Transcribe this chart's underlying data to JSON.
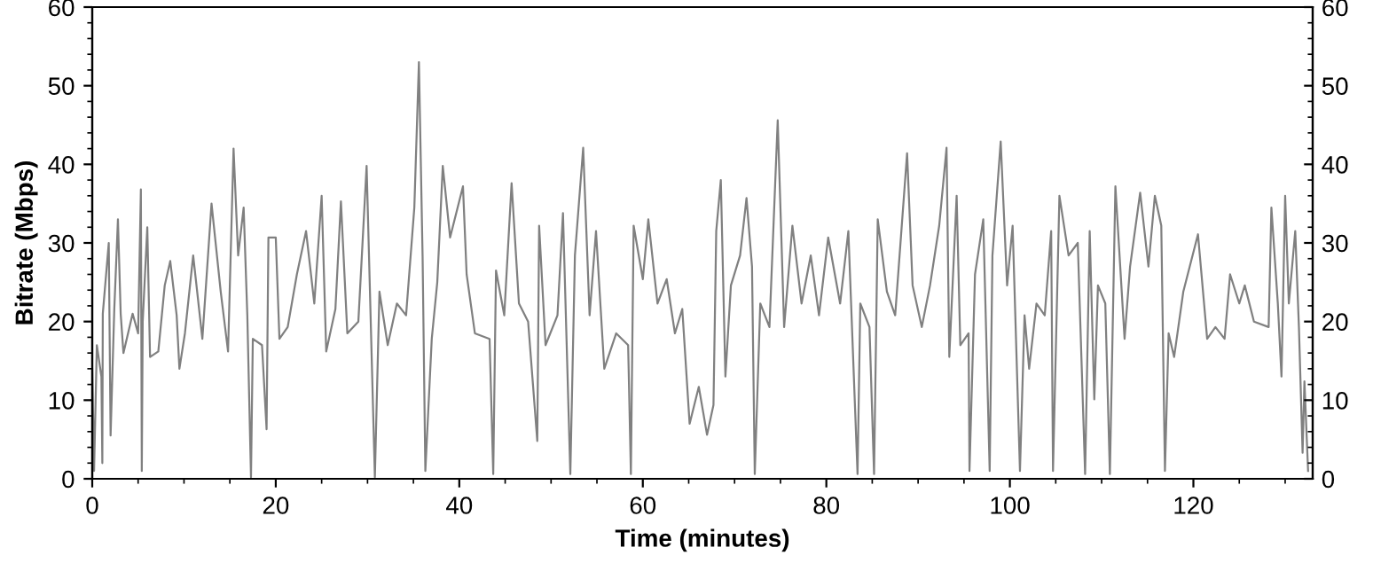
{
  "chart_data": {
    "type": "line",
    "xlabel": "Time (minutes)",
    "ylabel": "Bitrate (Mbps)",
    "xlim": [
      0,
      133
    ],
    "xticks": [
      0,
      20,
      40,
      60,
      80,
      100,
      120
    ],
    "ylim": [
      0,
      60
    ],
    "yticks": [
      0,
      10,
      20,
      30,
      40,
      50,
      60
    ],
    "y2lim": [
      0,
      60
    ],
    "y2ticks": [
      0,
      10,
      20,
      30,
      40,
      50,
      60
    ],
    "grid": false,
    "marker": "none",
    "line_style": "solid",
    "series": [
      {
        "color": "#808080",
        "x": [
          0,
          0.2,
          0.5,
          1.0,
          1.1,
          1.15,
          1.8,
          2.0,
          2.4,
          2.8,
          3.1,
          3.4,
          4.4,
          5.0,
          5.3,
          5.4,
          5.5,
          6.0,
          6.3,
          7.2,
          7.9,
          8.5,
          9.2,
          9.5,
          10.1,
          11.0,
          12.0,
          13.0,
          14.0,
          14.8,
          15.4,
          15.9,
          16.5,
          16.9,
          17.3,
          17.5,
          18.5,
          19.0,
          19.2,
          20.0,
          20.4,
          21.3,
          22.3,
          23.3,
          24.2,
          25.0,
          25.5,
          26.5,
          27.1,
          27.8,
          29.0,
          29.9,
          30.8,
          31.3,
          32.2,
          33.2,
          34.2,
          35.1,
          35.6,
          36.0,
          36.3,
          37.0,
          37.6,
          38.2,
          39.0,
          40.4,
          40.8,
          41.7,
          43.3,
          43.7,
          44.0,
          44.9,
          45.7,
          46.5,
          47.5,
          48.5,
          48.7,
          49.4,
          50.7,
          51.3,
          52.1,
          52.6,
          53.5,
          54.2,
          54.9,
          55.8,
          57.1,
          58.4,
          58.7,
          59.0,
          60.0,
          60.6,
          61.6,
          62.6,
          63.5,
          64.3,
          65.1,
          66.1,
          67.0,
          67.7,
          68.0,
          68.5,
          69.0,
          69.6,
          70.6,
          71.3,
          71.9,
          72.2,
          72.8,
          73.8,
          74.7,
          75.4,
          76.3,
          77.3,
          78.3,
          79.2,
          80.2,
          81.5,
          82.4,
          83.4,
          83.7,
          84.7,
          85.2,
          85.6,
          86.6,
          87.5,
          88.8,
          89.4,
          90.4,
          91.3,
          92.3,
          93.1,
          93.4,
          94.2,
          94.6,
          95.5,
          95.6,
          96.2,
          97.1,
          97.8,
          98.1,
          99.0,
          99.7,
          100.3,
          101.1,
          101.6,
          102.1,
          102.9,
          103.8,
          104.5,
          104.7,
          105.4,
          106.4,
          107.4,
          108.2,
          108.7,
          109.2,
          109.6,
          110.4,
          110.9,
          111.5,
          112.5,
          113.1,
          114.2,
          115.1,
          115.8,
          116.5,
          116.9,
          117.3,
          117.9,
          118.9,
          120.5,
          121.5,
          122.4,
          123.4,
          124.0,
          125.0,
          125.6,
          126.6,
          128.2,
          128.5,
          129.2,
          129.6,
          130.0,
          130.4,
          131.1,
          131.5,
          131.9,
          132.1,
          132.5
        ],
        "values": [
          14,
          1,
          17,
          13,
          2,
          21,
          30,
          5.5,
          21.5,
          33,
          21,
          16,
          21,
          18.5,
          36.8,
          1,
          20,
          32,
          15.5,
          16.2,
          24.6,
          27.7,
          20.8,
          14,
          18.5,
          28.4,
          17.8,
          35,
          23.8,
          16.2,
          42,
          28.4,
          34.5,
          20.8,
          0.2,
          17.8,
          17,
          6.3,
          30.7,
          30.7,
          17.8,
          19.3,
          26,
          31.5,
          22.3,
          36,
          16.2,
          21.6,
          35.3,
          18.5,
          20,
          39.8,
          0.2,
          23.8,
          17,
          22.3,
          20.8,
          34.5,
          53,
          28.4,
          1,
          17.8,
          25,
          39.8,
          30.7,
          37.2,
          26,
          18.5,
          17.8,
          0.6,
          26.5,
          20.8,
          37.6,
          22.3,
          20,
          4.8,
          32.2,
          17,
          20.8,
          33.8,
          0.6,
          28.4,
          42.1,
          20.8,
          31.5,
          14,
          18.5,
          17,
          0.6,
          32.2,
          25.4,
          33,
          22.3,
          25.4,
          18.5,
          21.6,
          7,
          11.7,
          5.6,
          9.4,
          31.5,
          38,
          13,
          24.6,
          28.4,
          35.7,
          27,
          0.6,
          22.3,
          19.3,
          45.6,
          19.3,
          32.2,
          22.3,
          28.4,
          20.8,
          30.7,
          22.3,
          31.5,
          0.6,
          22.3,
          19.3,
          0.6,
          33,
          23.8,
          20.8,
          41.4,
          24.6,
          19.3,
          24.6,
          32.2,
          42.1,
          15.5,
          36,
          17,
          18.5,
          1,
          26,
          33,
          1,
          28.4,
          42.9,
          24.6,
          32.2,
          1,
          20.8,
          14,
          22.3,
          20.8,
          31.5,
          1,
          36,
          28.4,
          30,
          0.6,
          31.5,
          10.1,
          24.6,
          22.3,
          0.6,
          37.2,
          17.8,
          27,
          36.4,
          27,
          36,
          32.2,
          1,
          18.5,
          15.5,
          23.8,
          31.1,
          17.8,
          19.3,
          17.8,
          26,
          22.3,
          24.6,
          20,
          19.3,
          34.5,
          22.3,
          13,
          36,
          22.3,
          31.5,
          19.3,
          3.3,
          12.4,
          1
        ]
      }
    ]
  }
}
